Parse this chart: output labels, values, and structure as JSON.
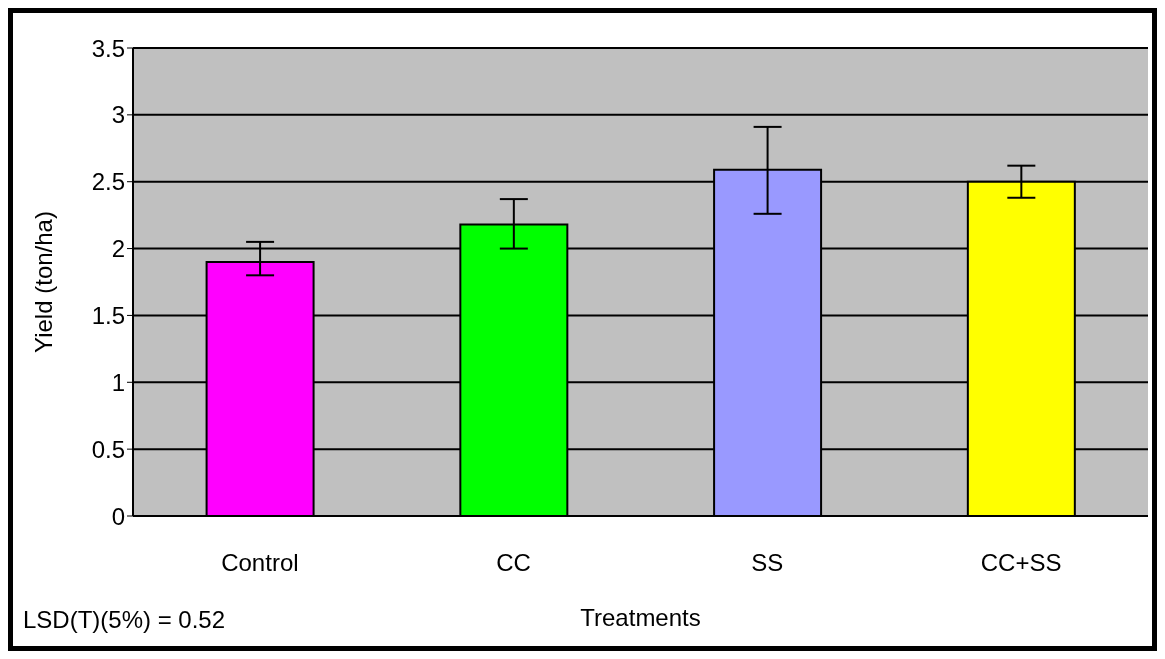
{
  "chart_data": {
    "type": "bar",
    "xlabel": "Treatments",
    "ylabel": "Yield (ton/ha)",
    "categories": [
      "Control",
      "CC",
      "SS",
      "CC+SS"
    ],
    "values": [
      1.9,
      2.18,
      2.59,
      2.5
    ],
    "colors": [
      "#ff00ff",
      "#00ff00",
      "#9999ff",
      "#ffff00"
    ],
    "errors": [
      [
        1.8,
        2.05
      ],
      [
        2.0,
        2.37
      ],
      [
        2.26,
        2.91
      ],
      [
        2.38,
        2.62
      ]
    ],
    "ylim": [
      0,
      3.5
    ],
    "yticks": [
      0,
      0.5,
      1,
      1.5,
      2,
      2.5,
      3,
      3.5
    ],
    "grid": "y",
    "annotations": [
      "LSD(T)(5%) = 0.52"
    ]
  }
}
